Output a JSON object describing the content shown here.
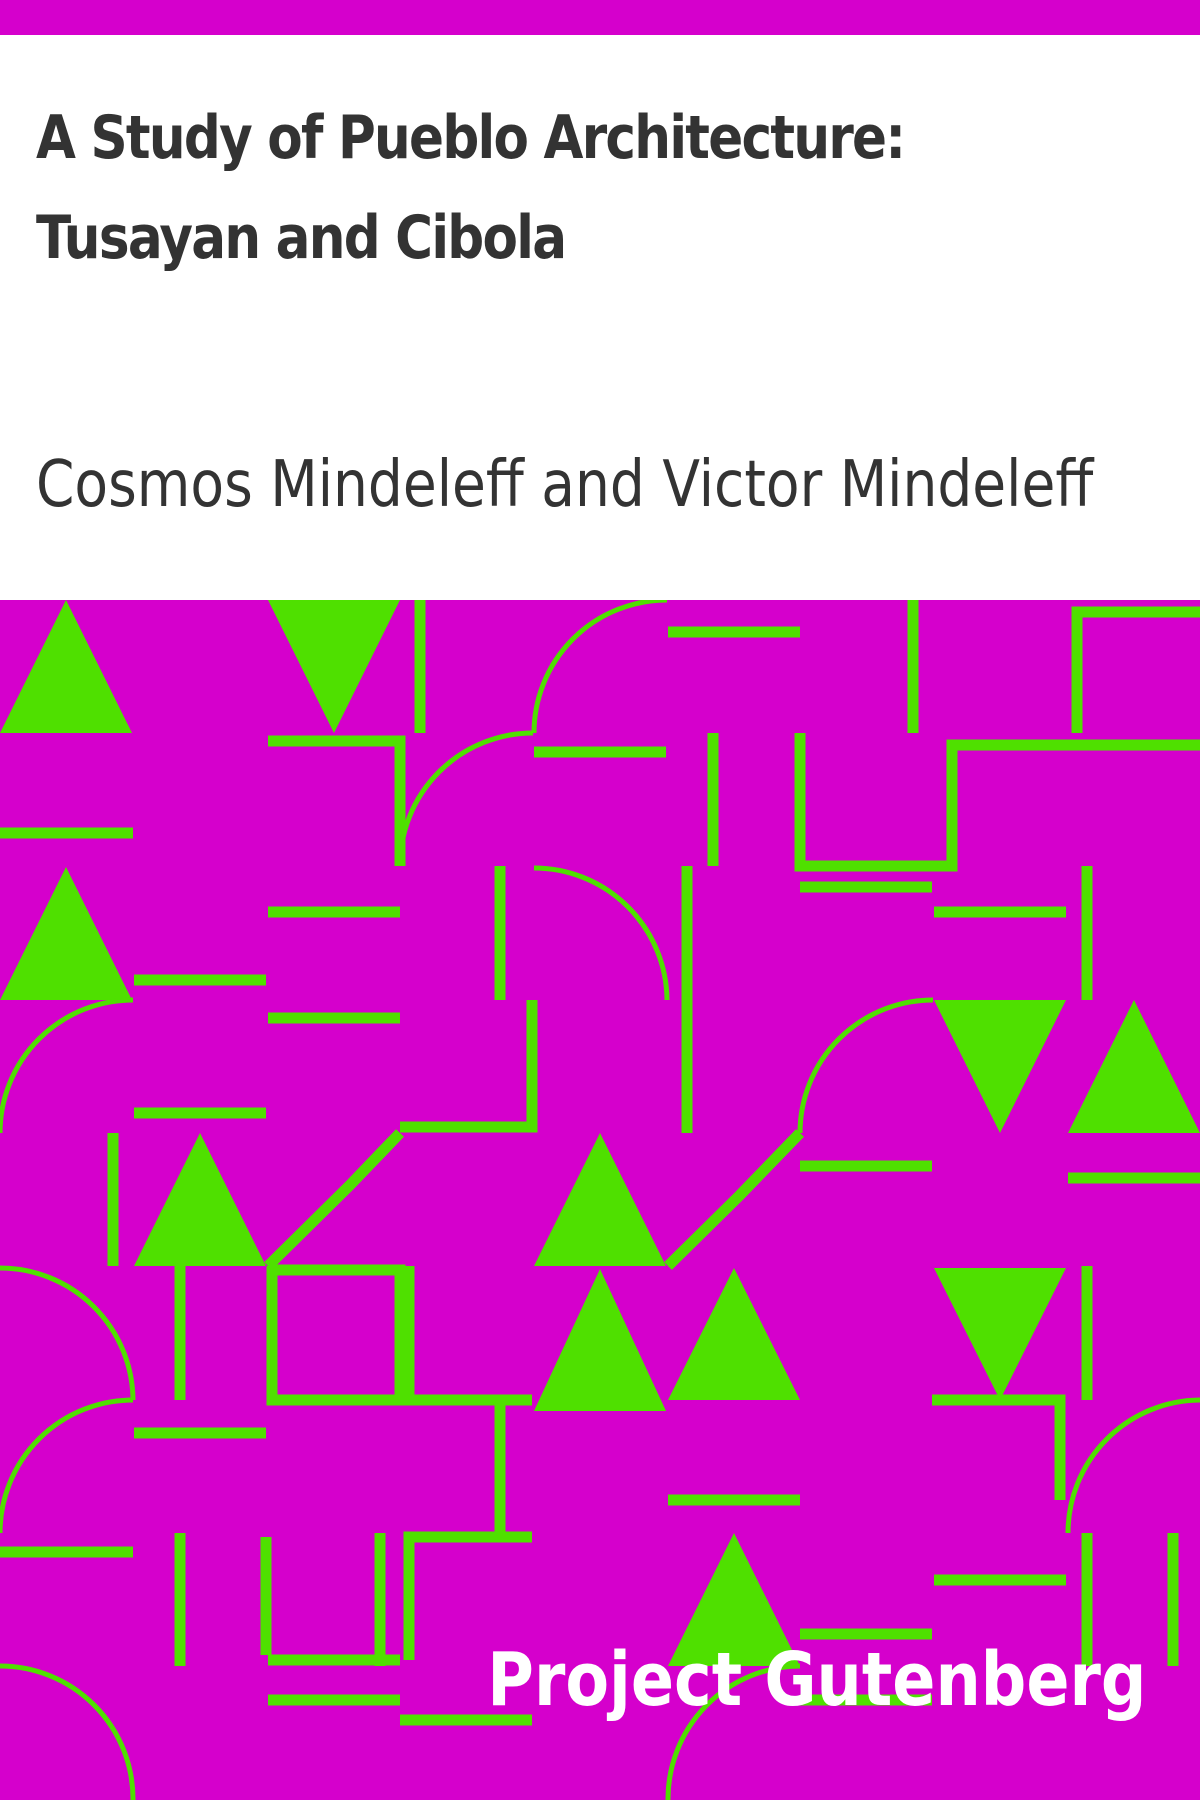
{
  "cover": {
    "title": "A Study of Pueblo Architecture: Tusayan and Cibola",
    "author": "Cosmos Mindeleff and Victor Mindeleff",
    "publisher": "Project Gutenberg"
  },
  "colors": {
    "background": "#d500cc",
    "pattern": "#4fe000",
    "text": "#333333",
    "publisher_text": "#ffffff"
  }
}
